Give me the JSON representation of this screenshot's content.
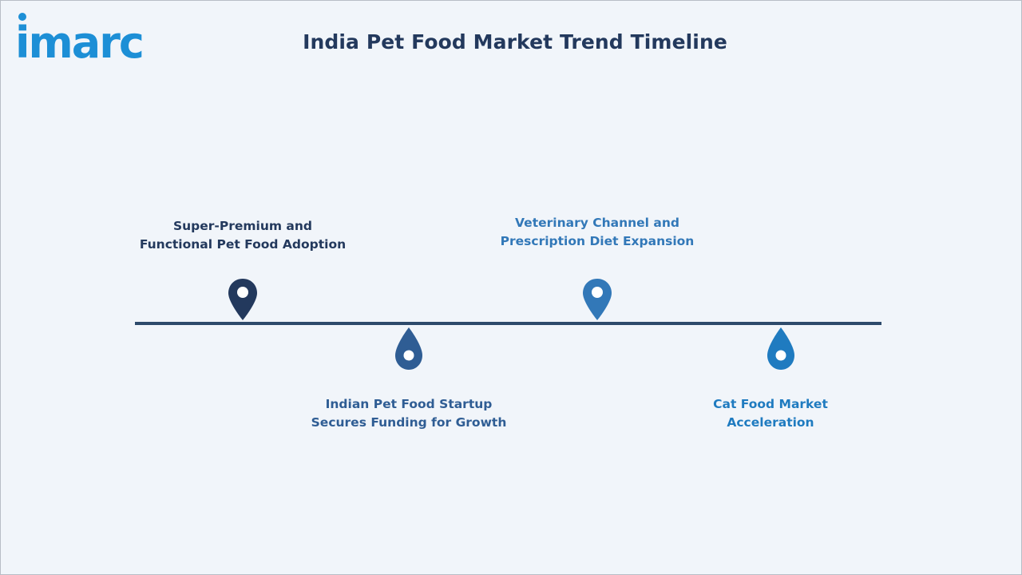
{
  "brand": {
    "logo_text": "imarc",
    "logo_color": "#1d8fd6"
  },
  "title": "India Pet Food Market Trend Timeline",
  "milestones": [
    {
      "position": "above",
      "label_line1": "Super-Premium and",
      "label_line2": "Functional Pet Food Adoption",
      "color": "#23395d",
      "icon": "map-pin-icon"
    },
    {
      "position": "below",
      "label_line1": "Indian Pet Food Startup",
      "label_line2": "Secures Funding for Growth",
      "color": "#2f5d94",
      "icon": "drop-pin-icon"
    },
    {
      "position": "above",
      "label_line1": "Veterinary Channel and",
      "label_line2": "Prescription Diet Expansion",
      "color": "#3278b8",
      "icon": "map-pin-icon"
    },
    {
      "position": "below",
      "label_line1": "Cat Food Market",
      "label_line2": "Acceleration",
      "color": "#1f7bc0",
      "icon": "drop-pin-icon"
    }
  ],
  "timeline": {
    "line_color": "#2d4a6b"
  }
}
